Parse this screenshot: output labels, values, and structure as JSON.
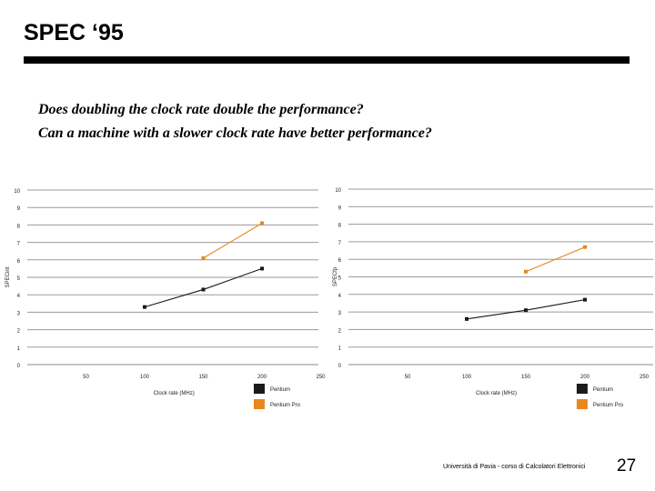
{
  "slide": {
    "title": "SPEC ‘95",
    "question1": "Does doubling the clock rate double the performance?",
    "question2": "Can a machine with a slower clock rate have better performance?",
    "footer": "Università di Pavia - corso di Calcolatori Elettronici",
    "page_number": "27"
  },
  "colors": {
    "pentium": "#1a1a1a",
    "pentium_pro": "#e8871e"
  },
  "chart_data": [
    {
      "type": "line",
      "title": "",
      "xlabel": "Clock rate (MHz)",
      "ylabel": "SPECint",
      "xlim": [
        0,
        250
      ],
      "ylim": [
        0,
        10
      ],
      "x_ticks": [
        0,
        50,
        100,
        150,
        200,
        250
      ],
      "y_ticks": [
        0,
        1,
        2,
        3,
        4,
        5,
        6,
        7,
        8,
        9,
        10
      ],
      "grid": "horizontal",
      "legend_position": "bottom-right",
      "series": [
        {
          "name": "Pentium",
          "color": "#1a1a1a",
          "x": [
            100,
            150,
            200
          ],
          "y": [
            3.3,
            4.3,
            5.5
          ]
        },
        {
          "name": "Pentium Pro",
          "color": "#e8871e",
          "x": [
            150,
            200
          ],
          "y": [
            6.1,
            8.1
          ]
        }
      ]
    },
    {
      "type": "line",
      "title": "",
      "xlabel": "Clock rate (MHz)",
      "ylabel": "SPECfp",
      "xlim": [
        0,
        250
      ],
      "ylim": [
        0,
        10
      ],
      "x_ticks": [
        0,
        50,
        100,
        150,
        200,
        250
      ],
      "y_ticks": [
        0,
        1,
        2,
        3,
        4,
        5,
        6,
        7,
        8,
        9,
        10
      ],
      "grid": "horizontal",
      "legend_position": "bottom-right",
      "series": [
        {
          "name": "Pentium",
          "color": "#1a1a1a",
          "x": [
            100,
            150,
            200
          ],
          "y": [
            2.6,
            3.1,
            3.7
          ]
        },
        {
          "name": "Pentium Pro",
          "color": "#e8871e",
          "x": [
            150,
            200
          ],
          "y": [
            5.3,
            6.7
          ]
        }
      ]
    }
  ]
}
